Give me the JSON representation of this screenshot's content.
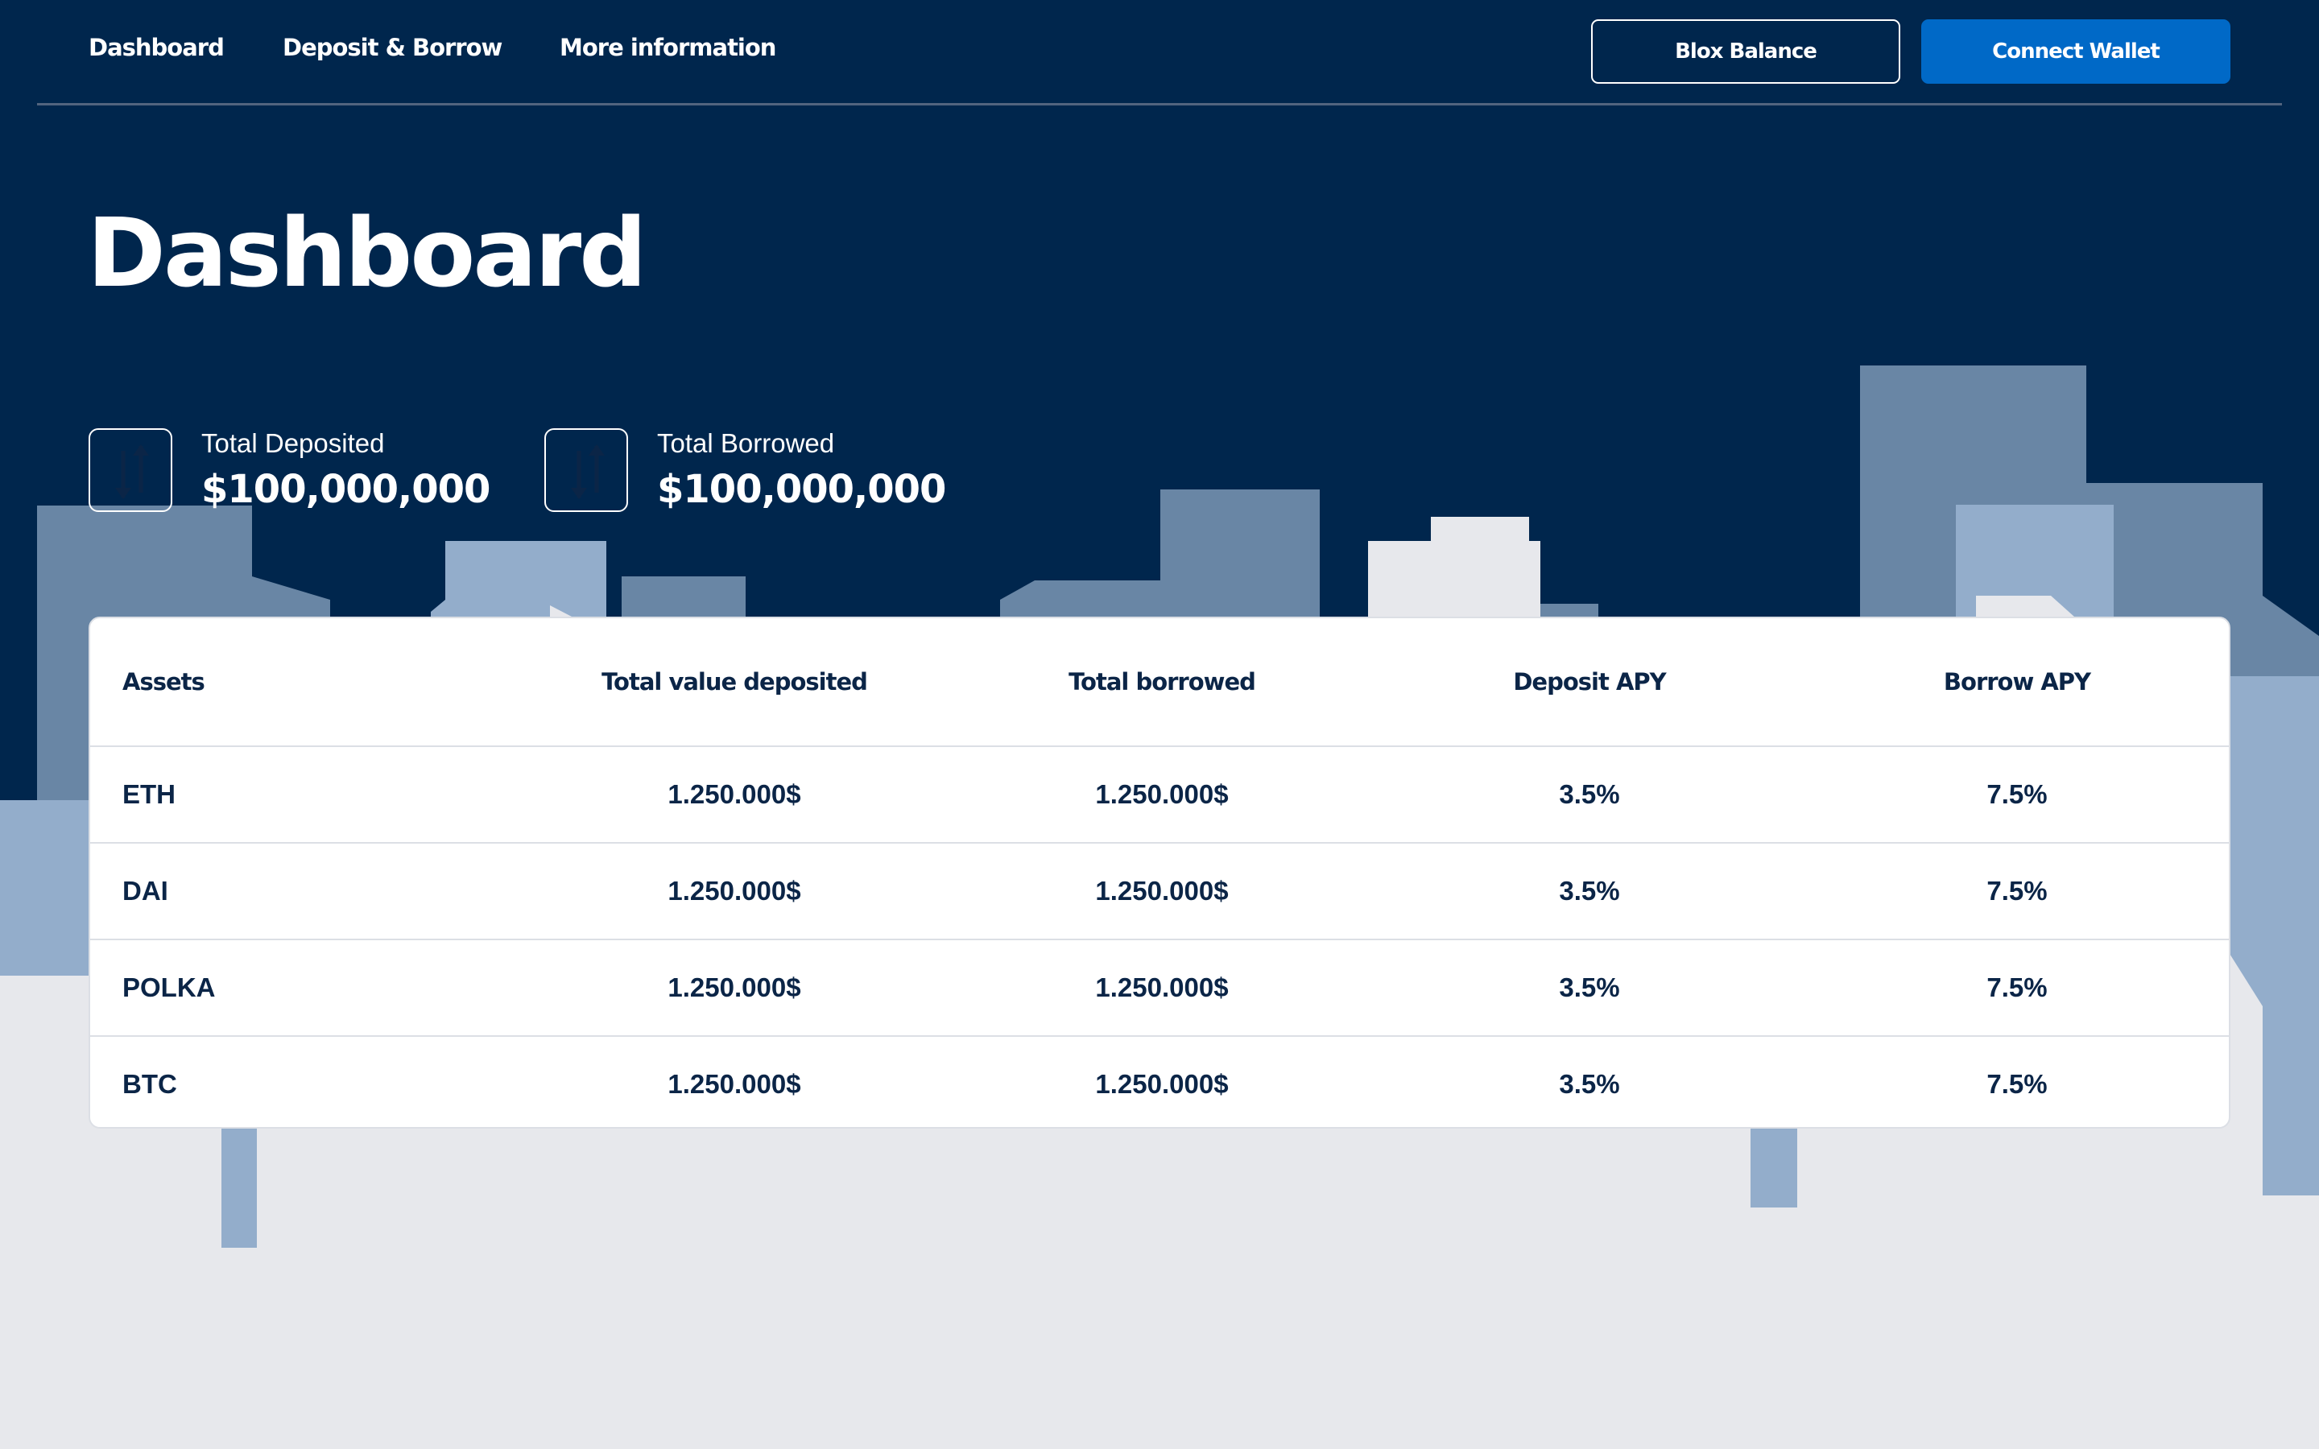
{
  "nav": {
    "links": [
      "Dashboard",
      "Deposit & Borrow",
      "More information"
    ],
    "blox_balance_label": "Blox Balance",
    "connect_wallet_label": "Connect Wallet"
  },
  "page": {
    "title": "Dashboard"
  },
  "stats": [
    {
      "label": "Total Deposited",
      "value": "$100,000,000",
      "icon": "up-down-arrows-icon"
    },
    {
      "label": "Total Borrowed",
      "value": "$100,000,000",
      "icon": "up-down-arrows-icon"
    }
  ],
  "table": {
    "headers": [
      "Assets",
      "Total value deposited",
      "Total borrowed",
      "Deposit APY",
      "Borrow APY"
    ],
    "rows": [
      [
        "ETH",
        "1.250.000$",
        "1.250.000$",
        "3.5%",
        "7.5%"
      ],
      [
        "DAI",
        "1.250.000$",
        "1.250.000$",
        "3.5%",
        "7.5%"
      ],
      [
        "POLKA",
        "1.250.000$",
        "1.250.000$",
        "3.5%",
        "7.5%"
      ],
      [
        "BTC",
        "1.250.000$",
        "1.250.000$",
        "3.5%",
        "7.5%"
      ]
    ]
  },
  "colors": {
    "navy": "#00264d",
    "accent_blue": "#0069c7",
    "skyline_dark": "#6986a5",
    "skyline_light": "#93adcb",
    "ground": "#e7e8ec",
    "text_dark": "#0b2547"
  }
}
